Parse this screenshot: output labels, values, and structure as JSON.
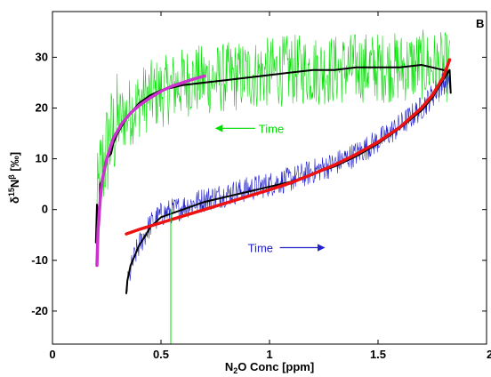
{
  "chart_data": {
    "type": "line",
    "panel_label": "B",
    "xlabel": {
      "pre": "N",
      "sub": "2",
      "post": "O Conc [ppm]"
    },
    "ylabel": {
      "delta": "δ",
      "sup1": "15",
      "mid": "N",
      "sup2": "β",
      "post": " [‰]"
    },
    "xlim": [
      0,
      2
    ],
    "ylim": [
      -26.5,
      39
    ],
    "xticks": [
      0,
      0.5,
      1,
      1.5,
      2
    ],
    "xtick_labels": [
      "0",
      "0.5",
      "1",
      "1.5",
      "2"
    ],
    "yticks": [
      -20,
      -10,
      0,
      10,
      20,
      30
    ],
    "ytick_labels": [
      "-20",
      "-10",
      "0",
      "10",
      "20",
      "30"
    ],
    "grid": false,
    "colors": {
      "green": "#00dd00",
      "blue": "#2222cc",
      "black": "#000000",
      "magenta": "#cc33cc",
      "red": "#ee1111"
    },
    "annotations": [
      {
        "text": "Time",
        "color": "#00dd00",
        "arrow": "left",
        "x": 0.95,
        "y": 16
      },
      {
        "text": "Time",
        "color": "#2222cc",
        "arrow": "right",
        "x": 0.9,
        "y": -7.5
      }
    ],
    "series": [
      {
        "kind": "noisy",
        "color": "#00dd00",
        "noise": 7,
        "points": [
          [
            0.2,
            -5
          ],
          [
            0.21,
            2
          ],
          [
            0.22,
            6
          ],
          [
            0.24,
            10
          ],
          [
            0.26,
            13
          ],
          [
            0.28,
            15
          ],
          [
            0.3,
            17
          ],
          [
            0.32,
            18
          ],
          [
            0.35,
            19
          ],
          [
            0.4,
            21
          ],
          [
            0.45,
            22.5
          ],
          [
            0.5,
            23
          ],
          [
            0.55,
            24
          ],
          [
            0.6,
            25
          ],
          [
            0.65,
            25.5
          ],
          [
            0.7,
            25.5
          ],
          [
            0.8,
            26
          ],
          [
            0.9,
            26.5
          ],
          [
            1.0,
            27
          ],
          [
            1.1,
            27.5
          ],
          [
            1.2,
            27.5
          ],
          [
            1.3,
            27.5
          ],
          [
            1.4,
            28
          ],
          [
            1.5,
            28
          ],
          [
            1.6,
            28
          ],
          [
            1.7,
            28.5
          ],
          [
            1.8,
            28
          ],
          [
            1.83,
            28
          ]
        ]
      },
      {
        "kind": "noisy",
        "color": "#2222cc",
        "noise": 2.5,
        "points": [
          [
            0.34,
            -16
          ],
          [
            0.36,
            -12
          ],
          [
            0.38,
            -9
          ],
          [
            0.4,
            -7
          ],
          [
            0.45,
            -3
          ],
          [
            0.5,
            -1
          ],
          [
            0.6,
            0.5
          ],
          [
            0.7,
            2
          ],
          [
            0.8,
            3
          ],
          [
            0.9,
            4
          ],
          [
            1.0,
            5
          ],
          [
            1.1,
            6
          ],
          [
            1.2,
            7.5
          ],
          [
            1.3,
            9
          ],
          [
            1.4,
            11
          ],
          [
            1.5,
            13.5
          ],
          [
            1.6,
            16.5
          ],
          [
            1.7,
            20
          ],
          [
            1.8,
            25
          ],
          [
            1.83,
            26
          ]
        ]
      },
      {
        "kind": "smooth",
        "color": "#000000",
        "width": 2,
        "points": [
          [
            0.2,
            -6.5
          ],
          [
            0.205,
            1
          ],
          [
            0.21,
            -1
          ],
          [
            0.215,
            -3
          ],
          [
            0.22,
            5
          ],
          [
            0.23,
            6
          ],
          [
            0.25,
            10
          ],
          [
            0.27,
            11
          ],
          [
            0.28,
            13
          ],
          [
            0.3,
            15
          ],
          [
            0.32,
            16.5
          ],
          [
            0.35,
            18.5
          ],
          [
            0.38,
            20
          ],
          [
            0.4,
            21
          ],
          [
            0.45,
            22.5
          ],
          [
            0.5,
            23.5
          ],
          [
            0.55,
            24
          ],
          [
            0.6,
            24.5
          ],
          [
            0.7,
            25
          ],
          [
            0.8,
            25.5
          ],
          [
            0.9,
            26
          ],
          [
            1.0,
            26.5
          ],
          [
            1.1,
            27
          ],
          [
            1.2,
            27.5
          ],
          [
            1.3,
            27.5
          ],
          [
            1.4,
            28
          ],
          [
            1.5,
            28
          ],
          [
            1.6,
            28
          ],
          [
            1.7,
            28.5
          ],
          [
            1.75,
            28
          ],
          [
            1.8,
            27.5
          ],
          [
            1.83,
            27
          ]
        ]
      },
      {
        "kind": "smooth",
        "color": "#000000",
        "width": 2,
        "points": [
          [
            0.34,
            -16.5
          ],
          [
            0.345,
            -14
          ],
          [
            0.35,
            -13
          ],
          [
            0.36,
            -11
          ],
          [
            0.38,
            -9
          ],
          [
            0.4,
            -7
          ],
          [
            0.43,
            -5
          ],
          [
            0.45,
            -3.5
          ],
          [
            0.5,
            -1.5
          ],
          [
            0.6,
            0
          ],
          [
            0.7,
            1.5
          ],
          [
            0.8,
            2.5
          ],
          [
            0.9,
            3.5
          ],
          [
            1.0,
            4.5
          ],
          [
            1.1,
            5.5
          ],
          [
            1.2,
            7
          ],
          [
            1.3,
            8.5
          ],
          [
            1.4,
            10.5
          ],
          [
            1.5,
            13
          ],
          [
            1.6,
            16
          ],
          [
            1.7,
            19.5
          ],
          [
            1.75,
            22
          ],
          [
            1.8,
            25.5
          ],
          [
            1.83,
            27.5
          ],
          [
            1.835,
            23
          ]
        ]
      },
      {
        "kind": "fit",
        "color": "#cc33cc",
        "width": 3.5,
        "points": [
          [
            0.205,
            -11
          ],
          [
            0.21,
            -4
          ],
          [
            0.22,
            2
          ],
          [
            0.23,
            6
          ],
          [
            0.25,
            10
          ],
          [
            0.28,
            14
          ],
          [
            0.32,
            17
          ],
          [
            0.36,
            19
          ],
          [
            0.4,
            20.5
          ],
          [
            0.45,
            22
          ],
          [
            0.5,
            23.3
          ],
          [
            0.55,
            24.3
          ],
          [
            0.6,
            25
          ],
          [
            0.65,
            25.7
          ],
          [
            0.7,
            26.3
          ]
        ]
      },
      {
        "kind": "fit",
        "color": "#ee1111",
        "width": 3.5,
        "points": [
          [
            0.34,
            -4.8
          ],
          [
            0.4,
            -3.9
          ],
          [
            0.5,
            -2.6
          ],
          [
            0.6,
            -1.3
          ],
          [
            0.7,
            0
          ],
          [
            0.8,
            1.3
          ],
          [
            0.9,
            2.6
          ],
          [
            1.0,
            3.9
          ],
          [
            1.1,
            5.3
          ],
          [
            1.2,
            7
          ],
          [
            1.3,
            8.8
          ],
          [
            1.4,
            10.9
          ],
          [
            1.5,
            13.3
          ],
          [
            1.6,
            16.2
          ],
          [
            1.7,
            20
          ],
          [
            1.75,
            22.5
          ],
          [
            1.8,
            26
          ],
          [
            1.83,
            29.5
          ]
        ]
      },
      {
        "kind": "vline",
        "color": "#00dd00",
        "width": 1,
        "points": [
          [
            0.545,
            -26.5
          ],
          [
            0.545,
            0
          ]
        ]
      }
    ]
  }
}
